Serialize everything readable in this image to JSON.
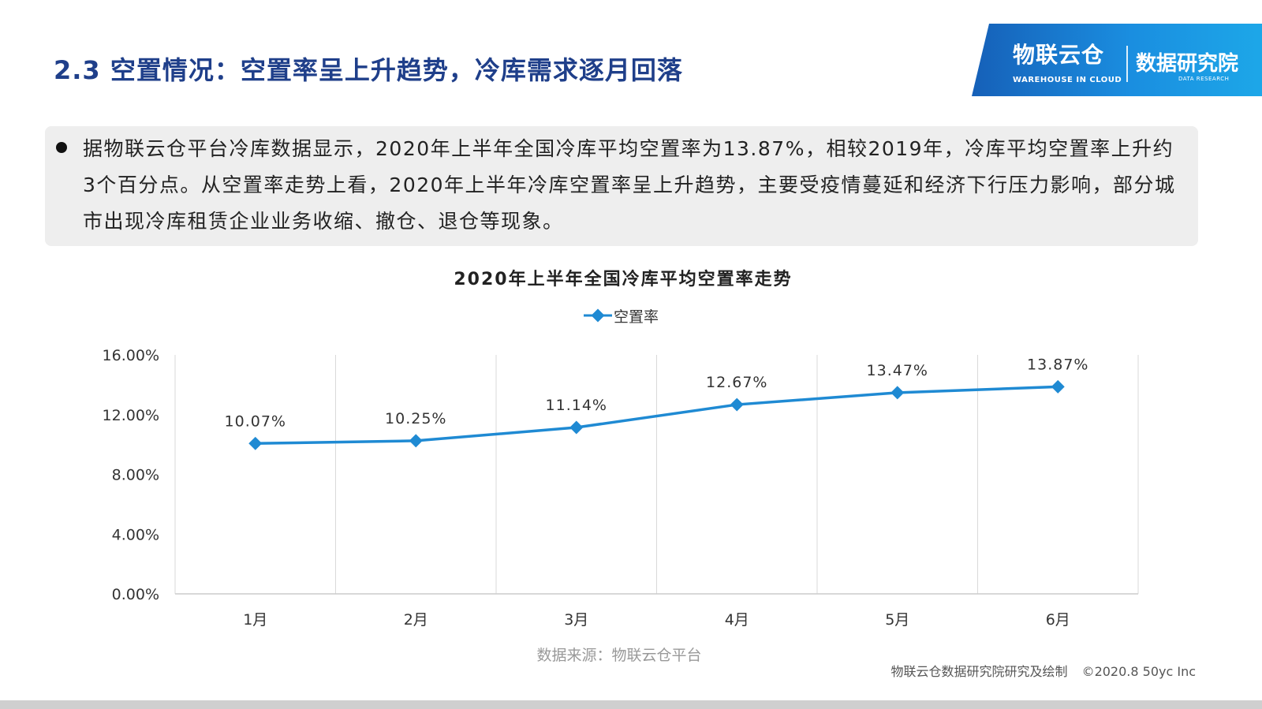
{
  "page": {
    "title": "2.3 空置情况：空置率呈上升趋势，冷库需求逐月回落"
  },
  "logo": {
    "brand": "物联云仓",
    "brand_sub": "WAREHOUSE IN CLOUD",
    "dept": "数据研究院",
    "dept_sub": "DATA RESEARCH"
  },
  "summary": {
    "text": "据物联云仓平台冷库数据显示，2020年上半年全国冷库平均空置率为13.87%，相较2019年，冷库平均空置率上升约3个百分点。从空置率走势上看，2020年上半年冷库空置率呈上升趋势，主要受疫情蔓延和经济下行压力影响，部分城市出现冷库租赁企业业务收缩、撤仓、退仓等现象。"
  },
  "chart_data": {
    "type": "line",
    "title": "2020年上半年全国冷库平均空置率走势",
    "categories": [
      "1月",
      "2月",
      "3月",
      "4月",
      "5月",
      "6月"
    ],
    "series": [
      {
        "name": "空置率",
        "values": [
          10.07,
          10.25,
          11.14,
          12.67,
          13.47,
          13.87
        ],
        "labels": [
          "10.07%",
          "10.25%",
          "11.14%",
          "12.67%",
          "13.47%",
          "13.87%"
        ],
        "color": "#1f8ad3"
      }
    ],
    "ylim": [
      0,
      16
    ],
    "yticks": [
      0,
      4,
      8,
      12,
      16
    ],
    "ytick_labels": [
      "0.00%",
      "4.00%",
      "8.00%",
      "12.00%",
      "16.00%"
    ],
    "legend": "top-center",
    "grid": "vertical"
  },
  "footer": {
    "source": "数据来源：物联云仓平台",
    "credit": "物联云仓数据研究院研究及绘制",
    "copyright": "©2020.8 50yc Inc"
  }
}
